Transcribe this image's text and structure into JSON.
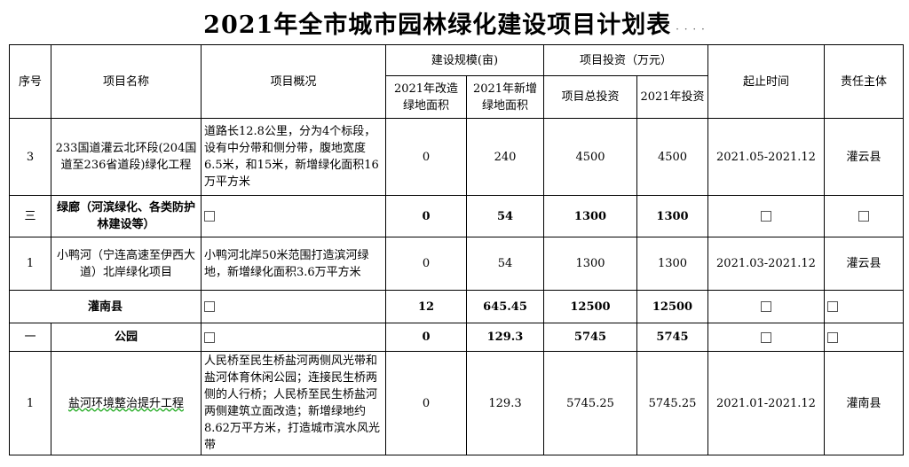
{
  "title": "2021年全市城市园林绿化建设项目计划表",
  "headers": {
    "seq": "序号",
    "name": "项目名称",
    "overview": "项目概况",
    "scale": "建设规模(亩)",
    "scale_sub1": "2021年改造绿地面积",
    "scale_sub2": "2021年新增绿地面积",
    "invest": "项目投资（万元）",
    "invest_sub1": "项目总投资",
    "invest_sub2": "2021年投资",
    "period": "起止时间",
    "owner": "责任主体"
  },
  "rows": [
    {
      "seq": "3",
      "name": "233国道灌云北环段(204国道至236省道段)绿化工程",
      "overview": "道路长12.8公里，分为4个标段，设有中分带和侧分带，腹地宽度6.5米，和15米，新增绿化面积16万平方米",
      "renovate": "0",
      "new": "240",
      "total": "4500",
      "y2021": "4500",
      "period": "2021.05-2021.12",
      "owner": "灌云县"
    },
    {
      "seq": "三",
      "name": "绿廊（河滨绿化、各类防护林建设等）",
      "overview": "",
      "renovate": "0",
      "new": "54",
      "total": "1300",
      "y2021": "1300",
      "period": "",
      "owner": ""
    },
    {
      "seq": "1",
      "name": "小鸭河（宁连高速至伊西大道）北岸绿化项目",
      "overview": "小鸭河北岸50米范围打造滨河绿地，新增绿化面积3.6万平方米",
      "renovate": "0",
      "new": "54",
      "total": "1300",
      "y2021": "1300",
      "period": "2021.03-2021.12",
      "owner": "灌云县"
    },
    {
      "name": "灌南县",
      "overview": "",
      "renovate": "12",
      "new": "645.45",
      "total": "12500",
      "y2021": "12500",
      "period": "",
      "owner": ""
    },
    {
      "seq": "一",
      "name": "公园",
      "overview": "",
      "renovate": "0",
      "new": "129.3",
      "total": "5745",
      "y2021": "5745",
      "period": "",
      "owner": ""
    },
    {
      "seq": "1",
      "name": "盐河环境整治提升工程",
      "overview": "人民桥至民生桥盐河两侧风光带和盐河体育休闲公园；连接民生桥两侧的人行桥；人民桥至民生桥盐河两侧建筑立面改造；新增绿地约8.62万平方米，打造城市滨水风光带",
      "renovate": "0",
      "new": "129.3",
      "total": "5745.25",
      "y2021": "5745.25",
      "period": "2021.01-2021.12",
      "owner": "灌南县"
    }
  ]
}
